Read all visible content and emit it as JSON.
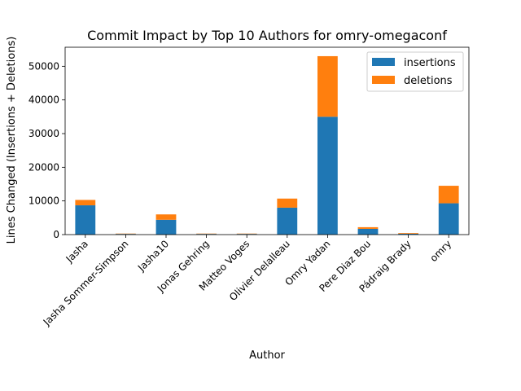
{
  "chart_data": {
    "type": "bar",
    "stacked": true,
    "title": "Commit Impact by Top 10 Authors for omry-omegaconf",
    "xlabel": "Author",
    "ylabel": "Lines Changed (Insertions + Deletions)",
    "categories": [
      "Jasha",
      "Jasha Sommer-Simpson",
      "Jasha10",
      "Jonas Gehring",
      "Matteo Voges",
      "Olivier Delalleau",
      "Omry Yadan",
      "Pere Diaz Bou",
      "Pádraig Brady",
      "omry"
    ],
    "series": [
      {
        "name": "insertions",
        "color": "#1f77b4",
        "values": [
          8700,
          200,
          4400,
          200,
          200,
          8000,
          35000,
          1700,
          250,
          9300
        ]
      },
      {
        "name": "deletions",
        "color": "#ff7f0e",
        "values": [
          1600,
          100,
          1600,
          100,
          100,
          2700,
          18000,
          500,
          200,
          5200
        ]
      }
    ],
    "ylim": [
      0,
      55650
    ],
    "yticks": [
      0,
      10000,
      20000,
      30000,
      40000,
      50000
    ],
    "grid": false,
    "legend_position": "top-right"
  }
}
